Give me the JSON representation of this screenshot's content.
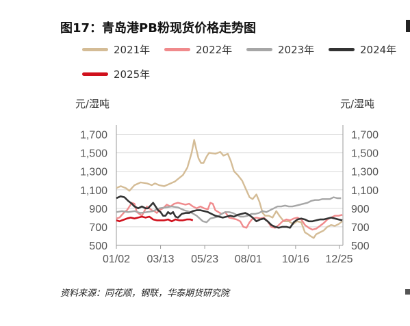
{
  "title": "图17：青岛港PB粉现货价格走势图",
  "source": "资料来源：同花顺，钢联，华泰期货研究院",
  "colors": {
    "2021年": "#d4bc96",
    "2022年": "#f08a8c",
    "2023年": "#a6a6a6",
    "2024年": "#333333",
    "2025年": "#d0101c"
  },
  "chart_data": {
    "type": "line",
    "title": "青岛港PB粉现货价格走势图",
    "ylabel_left": "元/湿吨",
    "ylabel_right": "元/湿吨",
    "ylim": [
      500,
      1800
    ],
    "yticks": [
      500,
      700,
      900,
      1100,
      1300,
      1500,
      1700
    ],
    "ytick_labels": [
      "500",
      "700",
      "900",
      "1,100",
      "1,300",
      "1,500",
      "1,700"
    ],
    "x_ticks": [
      "01/02",
      "03/13",
      "05/23",
      "08/01",
      "10/16",
      "12/25"
    ],
    "x_tick_days": [
      1,
      72,
      143,
      213,
      289,
      359
    ],
    "x_domain_days": [
      1,
      365
    ],
    "grid": "horizontal",
    "legend_position": "top",
    "series": [
      {
        "name": "2021年",
        "points": [
          [
            1,
            1120
          ],
          [
            8,
            1140
          ],
          [
            16,
            1120
          ],
          [
            22,
            1090
          ],
          [
            30,
            1150
          ],
          [
            40,
            1180
          ],
          [
            50,
            1170
          ],
          [
            58,
            1150
          ],
          [
            63,
            1170
          ],
          [
            70,
            1150
          ],
          [
            78,
            1140
          ],
          [
            85,
            1160
          ],
          [
            95,
            1190
          ],
          [
            108,
            1260
          ],
          [
            115,
            1340
          ],
          [
            122,
            1500
          ],
          [
            126,
            1640
          ],
          [
            129,
            1550
          ],
          [
            133,
            1440
          ],
          [
            137,
            1390
          ],
          [
            141,
            1390
          ],
          [
            146,
            1460
          ],
          [
            150,
            1500
          ],
          [
            160,
            1490
          ],
          [
            168,
            1510
          ],
          [
            173,
            1470
          ],
          [
            180,
            1490
          ],
          [
            185,
            1410
          ],
          [
            190,
            1300
          ],
          [
            196,
            1260
          ],
          [
            203,
            1200
          ],
          [
            209,
            1110
          ],
          [
            215,
            1020
          ],
          [
            220,
            1000
          ],
          [
            226,
            1050
          ],
          [
            231,
            970
          ],
          [
            236,
            850
          ],
          [
            240,
            820
          ],
          [
            246,
            820
          ],
          [
            252,
            800
          ],
          [
            258,
            870
          ],
          [
            263,
            820
          ],
          [
            270,
            760
          ],
          [
            278,
            760
          ],
          [
            285,
            730
          ],
          [
            291,
            760
          ],
          [
            298,
            750
          ],
          [
            304,
            640
          ],
          [
            309,
            620
          ],
          [
            313,
            600
          ],
          [
            318,
            580
          ],
          [
            322,
            620
          ],
          [
            328,
            640
          ],
          [
            334,
            660
          ],
          [
            340,
            700
          ],
          [
            346,
            720
          ],
          [
            352,
            710
          ],
          [
            358,
            730
          ],
          [
            364,
            760
          ]
        ]
      },
      {
        "name": "2022年",
        "points": [
          [
            1,
            790
          ],
          [
            6,
            800
          ],
          [
            10,
            830
          ],
          [
            14,
            860
          ],
          [
            18,
            880
          ],
          [
            22,
            920
          ],
          [
            26,
            960
          ],
          [
            30,
            950
          ],
          [
            34,
            860
          ],
          [
            38,
            840
          ],
          [
            42,
            820
          ],
          [
            46,
            870
          ],
          [
            50,
            920
          ],
          [
            54,
            900
          ],
          [
            58,
            880
          ],
          [
            62,
            870
          ],
          [
            66,
            850
          ],
          [
            70,
            880
          ],
          [
            76,
            900
          ],
          [
            82,
            940
          ],
          [
            88,
            920
          ],
          [
            94,
            950
          ],
          [
            100,
            960
          ],
          [
            106,
            950
          ],
          [
            112,
            940
          ],
          [
            118,
            950
          ],
          [
            124,
            920
          ],
          [
            130,
            900
          ],
          [
            136,
            920
          ],
          [
            142,
            900
          ],
          [
            148,
            890
          ],
          [
            152,
            960
          ],
          [
            156,
            950
          ],
          [
            160,
            880
          ],
          [
            165,
            860
          ],
          [
            170,
            840
          ],
          [
            176,
            860
          ],
          [
            182,
            800
          ],
          [
            188,
            790
          ],
          [
            194,
            780
          ],
          [
            200,
            760
          ],
          [
            205,
            700
          ],
          [
            210,
            690
          ],
          [
            215,
            750
          ],
          [
            220,
            790
          ],
          [
            226,
            800
          ],
          [
            232,
            790
          ],
          [
            238,
            800
          ],
          [
            244,
            760
          ],
          [
            250,
            700
          ],
          [
            256,
            690
          ],
          [
            262,
            720
          ],
          [
            268,
            760
          ],
          [
            274,
            780
          ],
          [
            280,
            770
          ],
          [
            286,
            790
          ],
          [
            292,
            800
          ],
          [
            298,
            780
          ],
          [
            304,
            720
          ],
          [
            310,
            690
          ],
          [
            316,
            670
          ],
          [
            322,
            680
          ],
          [
            328,
            710
          ],
          [
            334,
            740
          ],
          [
            340,
            780
          ],
          [
            346,
            800
          ],
          [
            352,
            820
          ],
          [
            358,
            820
          ],
          [
            364,
            830
          ]
        ]
      },
      {
        "name": "2023年",
        "points": [
          [
            1,
            860
          ],
          [
            10,
            870
          ],
          [
            20,
            860
          ],
          [
            30,
            870
          ],
          [
            40,
            850
          ],
          [
            50,
            860
          ],
          [
            60,
            870
          ],
          [
            70,
            900
          ],
          [
            80,
            910
          ],
          [
            90,
            920
          ],
          [
            100,
            910
          ],
          [
            110,
            880
          ],
          [
            120,
            860
          ],
          [
            130,
            820
          ],
          [
            140,
            760
          ],
          [
            146,
            750
          ],
          [
            152,
            790
          ],
          [
            158,
            800
          ],
          [
            164,
            810
          ],
          [
            170,
            840
          ],
          [
            176,
            860
          ],
          [
            182,
            860
          ],
          [
            188,
            850
          ],
          [
            194,
            830
          ],
          [
            200,
            810
          ],
          [
            206,
            810
          ],
          [
            212,
            820
          ],
          [
            218,
            840
          ],
          [
            224,
            840
          ],
          [
            230,
            850
          ],
          [
            236,
            870
          ],
          [
            242,
            860
          ],
          [
            248,
            880
          ],
          [
            254,
            900
          ],
          [
            260,
            920
          ],
          [
            266,
            920
          ],
          [
            272,
            930
          ],
          [
            278,
            920
          ],
          [
            284,
            920
          ],
          [
            290,
            930
          ],
          [
            296,
            940
          ],
          [
            302,
            950
          ],
          [
            308,
            960
          ],
          [
            314,
            980
          ],
          [
            320,
            990
          ],
          [
            326,
            990
          ],
          [
            332,
            1000
          ],
          [
            338,
            1000
          ],
          [
            344,
            1000
          ],
          [
            350,
            1020
          ],
          [
            356,
            1010
          ],
          [
            362,
            1010
          ]
        ]
      },
      {
        "name": "2024年",
        "points": [
          [
            1,
            1010
          ],
          [
            8,
            1030
          ],
          [
            14,
            1020
          ],
          [
            20,
            980
          ],
          [
            26,
            950
          ],
          [
            30,
            920
          ],
          [
            36,
            900
          ],
          [
            42,
            920
          ],
          [
            48,
            900
          ],
          [
            52,
            900
          ],
          [
            56,
            930
          ],
          [
            60,
            960
          ],
          [
            64,
            920
          ],
          [
            68,
            880
          ],
          [
            72,
            860
          ],
          [
            76,
            820
          ],
          [
            80,
            820
          ],
          [
            84,
            860
          ],
          [
            88,
            840
          ],
          [
            92,
            860
          ],
          [
            96,
            810
          ],
          [
            100,
            800
          ],
          [
            106,
            840
          ],
          [
            112,
            850
          ],
          [
            118,
            850
          ],
          [
            124,
            870
          ],
          [
            130,
            880
          ],
          [
            136,
            880
          ],
          [
            142,
            870
          ],
          [
            148,
            860
          ],
          [
            154,
            840
          ],
          [
            160,
            820
          ],
          [
            166,
            810
          ],
          [
            172,
            800
          ],
          [
            178,
            810
          ],
          [
            184,
            820
          ],
          [
            190,
            810
          ],
          [
            196,
            830
          ],
          [
            202,
            840
          ],
          [
            208,
            850
          ],
          [
            214,
            830
          ],
          [
            220,
            800
          ],
          [
            226,
            760
          ],
          [
            232,
            780
          ],
          [
            238,
            790
          ],
          [
            244,
            760
          ],
          [
            250,
            720
          ],
          [
            256,
            700
          ],
          [
            262,
            690
          ],
          [
            268,
            700
          ],
          [
            274,
            700
          ],
          [
            280,
            690
          ],
          [
            286,
            750
          ],
          [
            292,
            780
          ],
          [
            298,
            790
          ],
          [
            304,
            780
          ],
          [
            310,
            760
          ],
          [
            316,
            760
          ],
          [
            322,
            770
          ],
          [
            328,
            780
          ],
          [
            334,
            780
          ],
          [
            340,
            790
          ],
          [
            346,
            800
          ],
          [
            352,
            790
          ],
          [
            358,
            780
          ],
          [
            364,
            770
          ]
        ]
      },
      {
        "name": "2025年",
        "points": [
          [
            1,
            770
          ],
          [
            6,
            760
          ],
          [
            10,
            770
          ],
          [
            14,
            780
          ],
          [
            18,
            790
          ],
          [
            24,
            800
          ],
          [
            30,
            790
          ],
          [
            36,
            800
          ],
          [
            42,
            810
          ],
          [
            48,
            800
          ],
          [
            54,
            810
          ],
          [
            60,
            780
          ],
          [
            66,
            770
          ],
          [
            72,
            770
          ],
          [
            78,
            770
          ],
          [
            84,
            780
          ],
          [
            90,
            760
          ],
          [
            96,
            780
          ],
          [
            102,
            770
          ],
          [
            108,
            770
          ],
          [
            114,
            780
          ],
          [
            120,
            780
          ],
          [
            124,
            770
          ]
        ]
      }
    ]
  }
}
